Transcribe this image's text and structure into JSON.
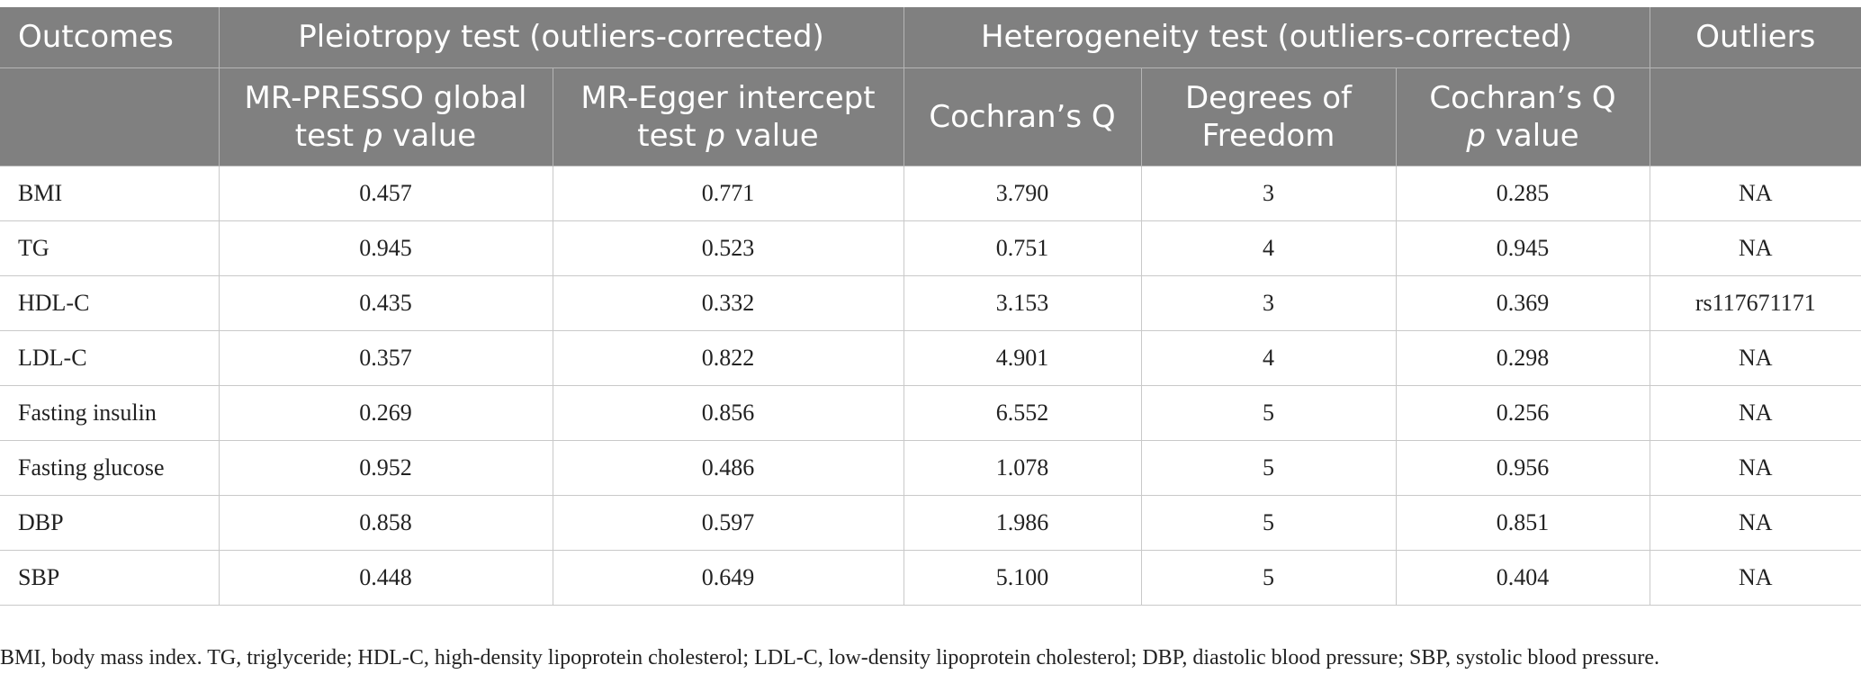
{
  "header": {
    "outcomes": "Outcomes",
    "pleiotropy": "Pleiotropy test (outliers-corrected)",
    "heterogeneity": "Heterogeneity test (outliers-corrected)",
    "outliers": "Outliers",
    "presso": {
      "pre": "MR-PRESSO global test ",
      "p": "p",
      "post": " value"
    },
    "egger": {
      "pre": "MR-Egger intercept test ",
      "p": "p",
      "post": " value"
    },
    "q": "Cochran’s Q",
    "df": "Degrees of Freedom",
    "qp": {
      "pre": "Cochran’s Q ",
      "p": "p",
      "post": " value"
    }
  },
  "rows": [
    {
      "outcome": "BMI",
      "presso": "0.457",
      "egger": "0.771",
      "q": "3.790",
      "df": "3",
      "qp": "0.285",
      "outliers": "NA"
    },
    {
      "outcome": "TG",
      "presso": "0.945",
      "egger": "0.523",
      "q": "0.751",
      "df": "4",
      "qp": "0.945",
      "outliers": "NA"
    },
    {
      "outcome": "HDL-C",
      "presso": "0.435",
      "egger": "0.332",
      "q": "3.153",
      "df": "3",
      "qp": "0.369",
      "outliers": "rs117671171"
    },
    {
      "outcome": "LDL-C",
      "presso": "0.357",
      "egger": "0.822",
      "q": "4.901",
      "df": "4",
      "qp": "0.298",
      "outliers": "NA"
    },
    {
      "outcome": "Fasting insulin",
      "presso": "0.269",
      "egger": "0.856",
      "q": "6.552",
      "df": "5",
      "qp": "0.256",
      "outliers": "NA"
    },
    {
      "outcome": "Fasting glucose",
      "presso": "0.952",
      "egger": "0.486",
      "q": "1.078",
      "df": "5",
      "qp": "0.956",
      "outliers": "NA"
    },
    {
      "outcome": "DBP",
      "presso": "0.858",
      "egger": "0.597",
      "q": "1.986",
      "df": "5",
      "qp": "0.851",
      "outliers": "NA"
    },
    {
      "outcome": "SBP",
      "presso": "0.448",
      "egger": "0.649",
      "q": "5.100",
      "df": "5",
      "qp": "0.404",
      "outliers": "NA"
    }
  ],
  "footnote": "BMI, body mass index. TG, triglyceride; HDL-C, high-density lipoprotein cholesterol; LDL-C, low-density lipoprotein cholesterol; DBP, diastolic blood pressure; SBP, systolic blood pressure."
}
